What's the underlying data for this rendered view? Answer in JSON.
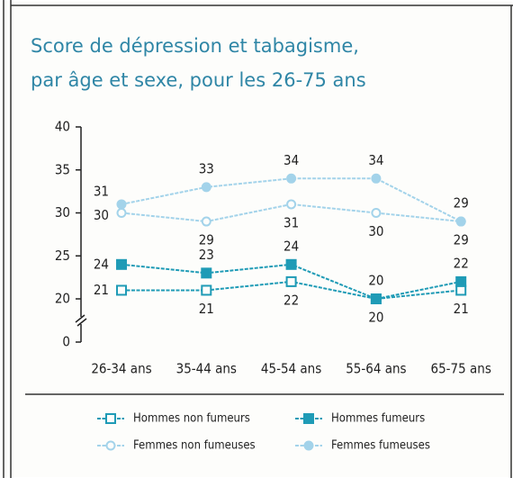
{
  "chart_data": {
    "type": "line",
    "title": [
      "Score de dépression et tabagisme,",
      "par âge et sexe, pour les 26-75 ans"
    ],
    "categories": [
      "26-34 ans",
      "35-44 ans",
      "45-54 ans",
      "55-64 ans",
      "65-75 ans"
    ],
    "series": [
      {
        "name": "Hommes non fumeurs",
        "color": "#1f9bb6",
        "marker": "square-open",
        "values": [
          21,
          21,
          22,
          20,
          21
        ]
      },
      {
        "name": "Hommes fumeurs",
        "color": "#1f9bb6",
        "marker": "square-filled",
        "values": [
          24,
          23,
          24,
          20,
          22
        ]
      },
      {
        "name": "Femmes non fumeuses",
        "color": "#a3d3ea",
        "marker": "circle-open",
        "values": [
          30,
          29,
          31,
          30,
          29
        ]
      },
      {
        "name": "Femmes fumeuses",
        "color": "#a3d3ea",
        "marker": "circle-filled",
        "values": [
          31,
          33,
          34,
          34,
          29
        ]
      }
    ],
    "ylim": [
      0,
      40
    ],
    "yticks": [
      0,
      20,
      25,
      30,
      35,
      40
    ],
    "axis_break": [
      0,
      20
    ],
    "grid": false
  }
}
